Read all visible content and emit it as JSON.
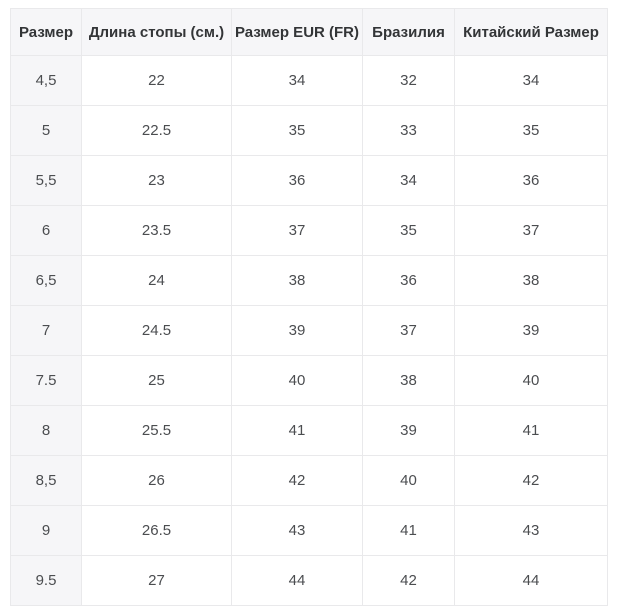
{
  "table": {
    "name": "shoe-size-conversion-chart",
    "headers": {
      "size": "Размер",
      "foot_length": "Длина стопы (см.)",
      "eur": "Размер EUR (FR)",
      "brazil": "Бразилия",
      "china": "Китайский Размер"
    },
    "rows": [
      [
        "4,5",
        "22",
        "34",
        "32",
        "34"
      ],
      [
        "5",
        "22.5",
        "35",
        "33",
        "35"
      ],
      [
        "5,5",
        "23",
        "36",
        "34",
        "36"
      ],
      [
        "6",
        "23.5",
        "37",
        "35",
        "37"
      ],
      [
        "6,5",
        "24",
        "38",
        "36",
        "38"
      ],
      [
        "7",
        "24.5",
        "39",
        "37",
        "39"
      ],
      [
        "7.5",
        "25",
        "40",
        "38",
        "40"
      ],
      [
        "8",
        "25.5",
        "41",
        "39",
        "41"
      ],
      [
        "8,5",
        "26",
        "42",
        "40",
        "42"
      ],
      [
        "9",
        "26.5",
        "43",
        "41",
        "43"
      ],
      [
        "9.5",
        "27",
        "44",
        "42",
        "44"
      ]
    ],
    "colors": {
      "header_bg": "#f6f6f8",
      "row_head_bg": "#f6f6f8",
      "border": "#e9e9eb",
      "header_text": "#333537",
      "body_text": "#4b4d50"
    }
  }
}
